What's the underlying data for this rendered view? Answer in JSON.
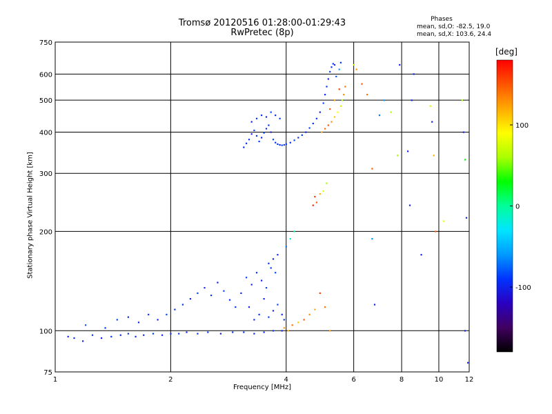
{
  "title": "Tromsø 20120516 01:28:00-01:29:43",
  "subtitle": "RwPretec (8p)",
  "phases": {
    "heading": "Phases",
    "line_o": "mean, sd,O: -82.5, 19.0",
    "line_x": "mean, sd,X: 103.6, 24.4"
  },
  "colorbar": {
    "unit_label": "[deg]",
    "ticks": [
      {
        "value": 100,
        "label": "100"
      },
      {
        "value": 0,
        "label": "0"
      },
      {
        "value": -100,
        "label": "-100"
      }
    ],
    "range": [
      -180,
      180
    ],
    "colors": [
      "#000000",
      "#400060",
      "#2a00c0",
      "#0033ff",
      "#0099ff",
      "#00e5ff",
      "#00ff99",
      "#00ff00",
      "#aaff00",
      "#ffff00",
      "#ffaa00",
      "#ff5500",
      "#ff0000"
    ]
  },
  "chart_data": {
    "type": "scatter",
    "title": "Tromsø 20120516 01:28:00-01:29:43",
    "subtitle": "RwPretec (8p)",
    "xlabel": "Frequency [MHz]",
    "ylabel": "Stationary phase Virtual Height [km]",
    "x_scale": "log",
    "y_scale": "log",
    "xlim": [
      1,
      12
    ],
    "ylim": [
      75,
      750
    ],
    "grid": true,
    "x_ticks": [
      {
        "value": 1,
        "label": "1"
      },
      {
        "value": 2,
        "label": "2"
      },
      {
        "value": 4,
        "label": "4"
      },
      {
        "value": 6,
        "label": "6"
      },
      {
        "value": 8,
        "label": "8"
      },
      {
        "value": 10,
        "label": "10"
      },
      {
        "value": 12,
        "label": "12"
      }
    ],
    "y_ticks": [
      {
        "value": 75,
        "label": "75"
      },
      {
        "value": 100,
        "label": "100"
      },
      {
        "value": 200,
        "label": "200"
      },
      {
        "value": 300,
        "label": "300"
      },
      {
        "value": 400,
        "label": "400"
      },
      {
        "value": 500,
        "label": "500"
      },
      {
        "value": 600,
        "label": "600"
      },
      {
        "value": 750,
        "label": "750"
      }
    ],
    "series": [
      {
        "marker_color_by": "phase_deg",
        "points": [
          [
            1.08,
            96,
            -100
          ],
          [
            1.12,
            95,
            -95
          ],
          [
            1.18,
            93,
            -100
          ],
          [
            1.25,
            97,
            -90
          ],
          [
            1.32,
            95,
            -100
          ],
          [
            1.4,
            96,
            -95
          ],
          [
            1.48,
            97,
            -100
          ],
          [
            1.55,
            98,
            -90
          ],
          [
            1.62,
            96,
            -95
          ],
          [
            1.7,
            97,
            -100
          ],
          [
            1.8,
            98,
            -90
          ],
          [
            1.9,
            97,
            -100
          ],
          [
            2.0,
            98,
            -95
          ],
          [
            2.1,
            98,
            -90
          ],
          [
            2.2,
            99,
            -100
          ],
          [
            2.35,
            98,
            -95
          ],
          [
            2.5,
            99,
            -90
          ],
          [
            2.7,
            98,
            -100
          ],
          [
            2.9,
            99,
            -95
          ],
          [
            3.1,
            99,
            -90
          ],
          [
            3.3,
            98,
            -100
          ],
          [
            3.5,
            99,
            -95
          ],
          [
            3.7,
            100,
            -90
          ],
          [
            3.9,
            100,
            -100
          ],
          [
            1.2,
            104,
            -80
          ],
          [
            1.35,
            102,
            -90
          ],
          [
            1.45,
            108,
            -85
          ],
          [
            1.55,
            110,
            -100
          ],
          [
            1.65,
            106,
            -95
          ],
          [
            1.75,
            112,
            -90
          ],
          [
            1.85,
            108,
            -100
          ],
          [
            1.95,
            112,
            -85
          ],
          [
            2.05,
            116,
            -95
          ],
          [
            2.15,
            120,
            -90
          ],
          [
            2.25,
            125,
            -100
          ],
          [
            2.35,
            130,
            -85
          ],
          [
            2.45,
            135,
            -95
          ],
          [
            2.55,
            128,
            -90
          ],
          [
            2.65,
            140,
            -100
          ],
          [
            2.75,
            132,
            -85
          ],
          [
            2.85,
            124,
            -95
          ],
          [
            2.95,
            118,
            -90
          ],
          [
            3.05,
            130,
            -100
          ],
          [
            3.15,
            145,
            -85
          ],
          [
            3.25,
            138,
            -95
          ],
          [
            3.35,
            150,
            -90
          ],
          [
            3.45,
            142,
            -100
          ],
          [
            3.55,
            135,
            -85
          ],
          [
            3.6,
            160,
            -95
          ],
          [
            3.65,
            155,
            -90
          ],
          [
            3.7,
            165,
            -100
          ],
          [
            3.75,
            150,
            -85
          ],
          [
            3.8,
            170,
            -95
          ],
          [
            3.5,
            125,
            -100
          ],
          [
            3.4,
            112,
            -90
          ],
          [
            3.3,
            108,
            -95
          ],
          [
            3.2,
            118,
            -100
          ],
          [
            3.6,
            110,
            -90
          ],
          [
            3.7,
            115,
            -100
          ],
          [
            3.8,
            120,
            -85
          ],
          [
            3.9,
            112,
            -95
          ],
          [
            3.95,
            108,
            -90
          ],
          [
            4.0,
            180,
            -70
          ],
          [
            4.1,
            190,
            -20
          ],
          [
            4.2,
            200,
            -10
          ],
          [
            3.95,
            102,
            130
          ],
          [
            4.05,
            100,
            120
          ],
          [
            4.15,
            104,
            140
          ],
          [
            4.3,
            106,
            110
          ],
          [
            4.45,
            108,
            150
          ],
          [
            4.6,
            112,
            130
          ],
          [
            4.75,
            116,
            120
          ],
          [
            4.9,
            130,
            160
          ],
          [
            5.05,
            118,
            140
          ],
          [
            5.2,
            100,
            125
          ],
          [
            4.7,
            240,
            170
          ],
          [
            4.75,
            255,
            160
          ],
          [
            4.8,
            245,
            150
          ],
          [
            4.9,
            260,
            120
          ],
          [
            5.0,
            265,
            80
          ],
          [
            5.1,
            280,
            60
          ],
          [
            3.1,
            360,
            -100
          ],
          [
            3.15,
            370,
            -95
          ],
          [
            3.2,
            380,
            -90
          ],
          [
            3.25,
            395,
            -100
          ],
          [
            3.3,
            405,
            -85
          ],
          [
            3.35,
            390,
            -95
          ],
          [
            3.4,
            375,
            -90
          ],
          [
            3.45,
            385,
            -100
          ],
          [
            3.5,
            398,
            -85
          ],
          [
            3.55,
            410,
            -95
          ],
          [
            3.6,
            420,
            -90
          ],
          [
            3.65,
            400,
            -100
          ],
          [
            3.7,
            380,
            -85
          ],
          [
            3.75,
            372,
            -95
          ],
          [
            3.8,
            368,
            -90
          ],
          [
            3.85,
            366,
            -100
          ],
          [
            3.9,
            365,
            -85
          ],
          [
            3.95,
            366,
            -95
          ],
          [
            4.0,
            368,
            -90
          ],
          [
            4.1,
            372,
            -100
          ],
          [
            4.2,
            378,
            -85
          ],
          [
            4.3,
            385,
            -95
          ],
          [
            4.4,
            392,
            -90
          ],
          [
            4.5,
            400,
            -100
          ],
          [
            4.6,
            412,
            -85
          ],
          [
            4.7,
            425,
            -95
          ],
          [
            4.8,
            440,
            -90
          ],
          [
            4.9,
            460,
            -100
          ],
          [
            5.0,
            490,
            -85
          ],
          [
            5.05,
            520,
            -95
          ],
          [
            5.1,
            550,
            -90
          ],
          [
            5.15,
            580,
            -100
          ],
          [
            5.2,
            610,
            -85
          ],
          [
            5.25,
            630,
            -95
          ],
          [
            5.3,
            645,
            -90
          ],
          [
            5.35,
            640,
            -100
          ],
          [
            3.25,
            430,
            -100
          ],
          [
            3.35,
            440,
            -90
          ],
          [
            3.45,
            450,
            -95
          ],
          [
            3.55,
            445,
            -100
          ],
          [
            3.65,
            460,
            -85
          ],
          [
            3.75,
            450,
            -95
          ],
          [
            3.85,
            440,
            -90
          ],
          [
            4.95,
            400,
            120
          ],
          [
            5.05,
            410,
            140
          ],
          [
            5.15,
            420,
            150
          ],
          [
            5.25,
            430,
            130
          ],
          [
            5.35,
            445,
            110
          ],
          [
            5.45,
            460,
            90
          ],
          [
            5.55,
            480,
            70
          ],
          [
            5.6,
            500,
            60
          ],
          [
            5.65,
            520,
            130
          ],
          [
            5.7,
            550,
            140
          ],
          [
            5.2,
            470,
            150
          ],
          [
            5.35,
            500,
            120
          ],
          [
            5.5,
            540,
            160
          ],
          [
            5.4,
            590,
            -80
          ],
          [
            5.5,
            620,
            -60
          ],
          [
            5.55,
            650,
            -90
          ],
          [
            6.0,
            640,
            70
          ],
          [
            6.1,
            620,
            130
          ],
          [
            6.3,
            560,
            150
          ],
          [
            6.5,
            520,
            140
          ],
          [
            6.7,
            310,
            150
          ],
          [
            6.7,
            190,
            -60
          ],
          [
            6.8,
            120,
            -100
          ],
          [
            7.0,
            450,
            -70
          ],
          [
            7.2,
            500,
            -60
          ],
          [
            7.5,
            460,
            60
          ],
          [
            7.8,
            340,
            60
          ],
          [
            7.9,
            640,
            -100
          ],
          [
            8.3,
            350,
            -100
          ],
          [
            8.4,
            240,
            -100
          ],
          [
            8.5,
            500,
            -100
          ],
          [
            8.6,
            600,
            -100
          ],
          [
            9.0,
            170,
            -100
          ],
          [
            9.5,
            480,
            70
          ],
          [
            9.6,
            430,
            -100
          ],
          [
            9.7,
            340,
            120
          ],
          [
            9.8,
            200,
            150
          ],
          [
            10.3,
            215,
            80
          ],
          [
            11.5,
            500,
            60
          ],
          [
            11.6,
            400,
            -100
          ],
          [
            11.7,
            330,
            30
          ],
          [
            11.8,
            220,
            -100
          ],
          [
            11.7,
            100,
            -100
          ],
          [
            11.9,
            80,
            -100
          ]
        ]
      }
    ]
  }
}
